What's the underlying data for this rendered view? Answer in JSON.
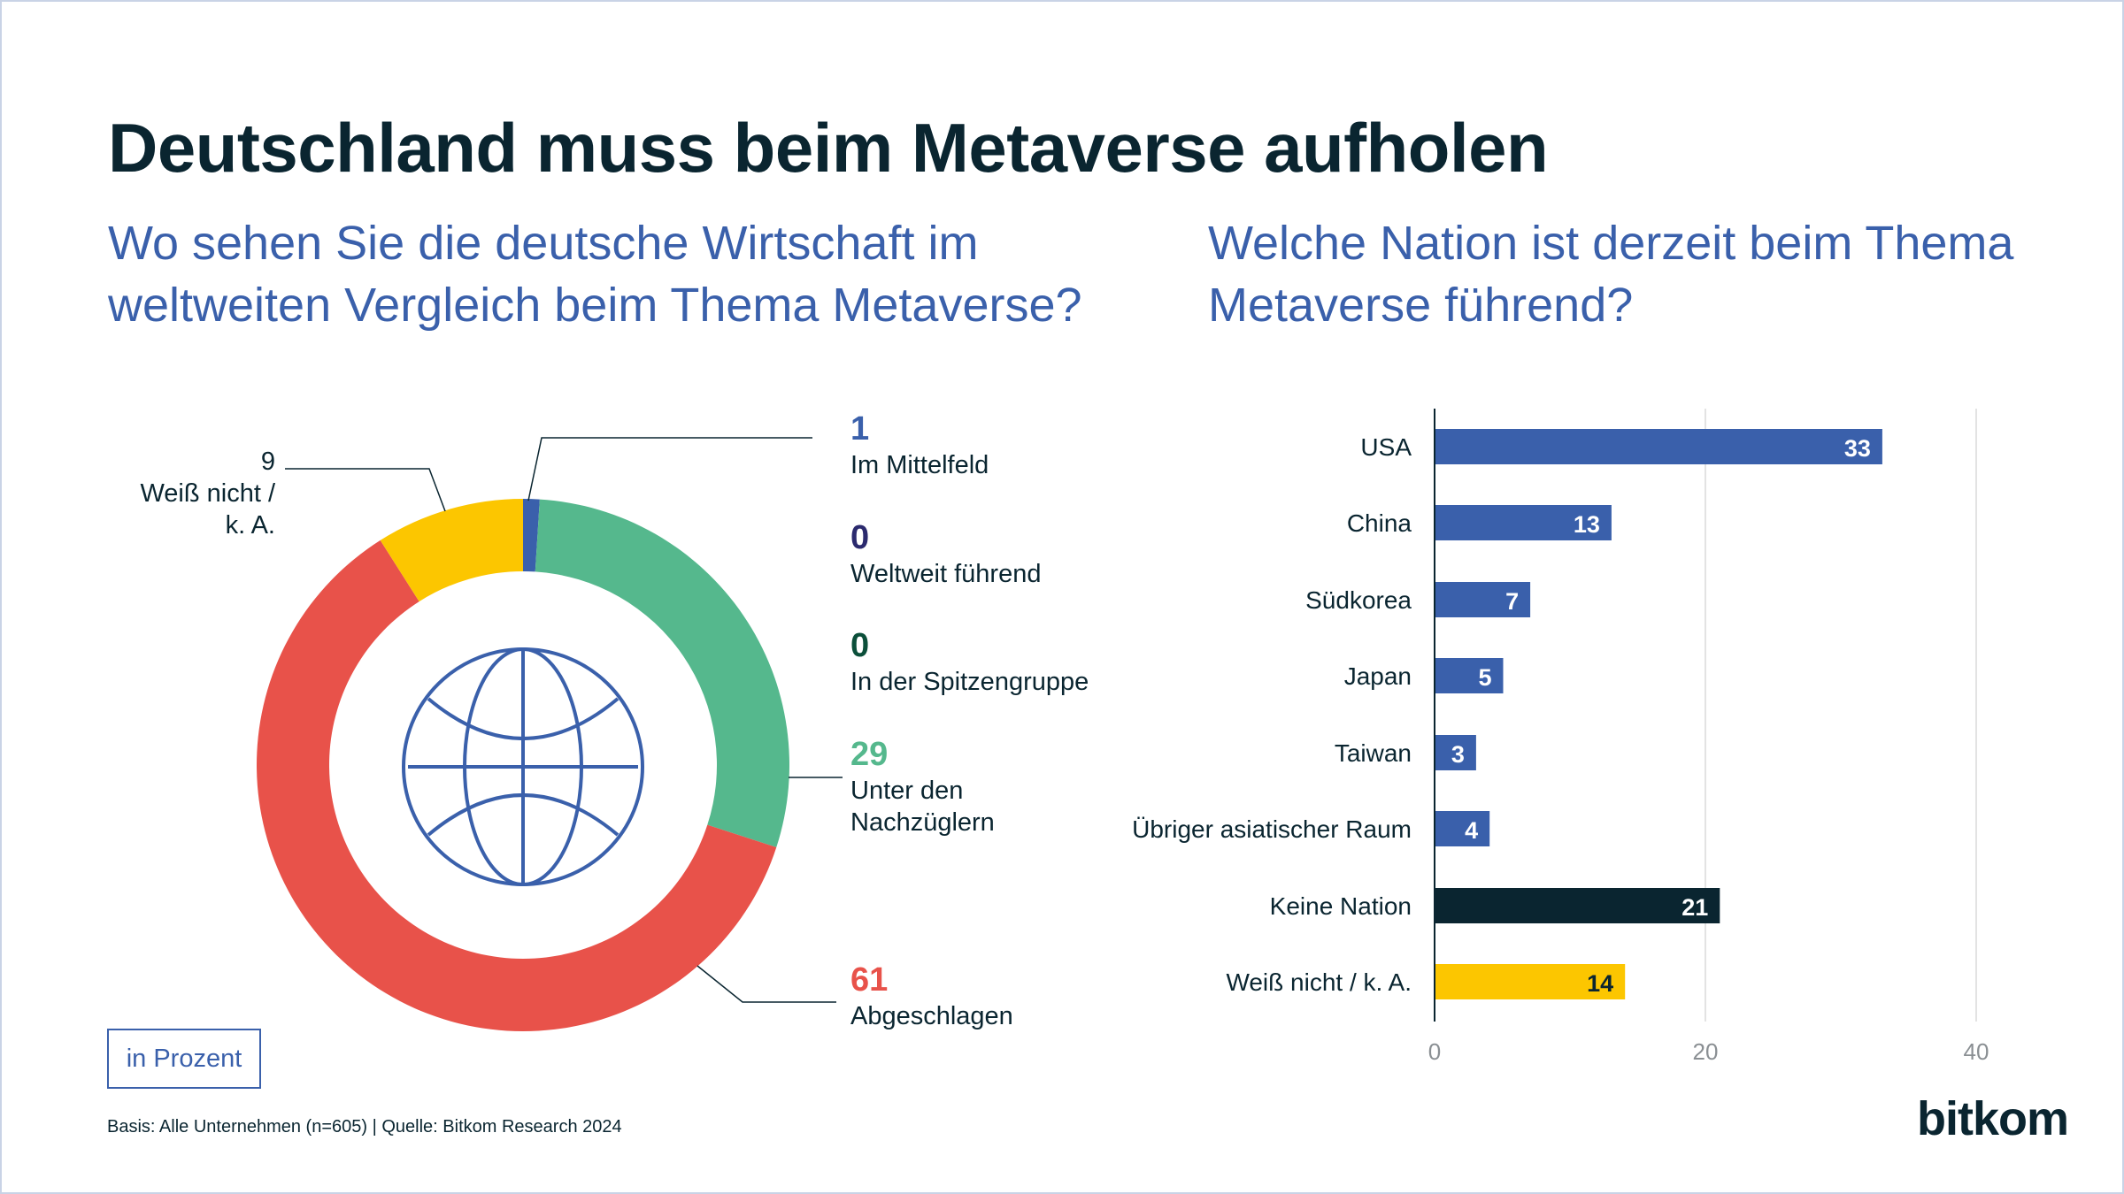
{
  "title": "Deutschland muss beim Metaverse aufholen",
  "subtitle_left": "Wo sehen Sie die deutsche Wirtschaft im weltweiten Vergleich beim Thema Metaverse?",
  "subtitle_right": "Welche Nation ist derzeit beim Thema Metaverse führend?",
  "unit_box": "in Prozent",
  "footer": "Basis: Alle Unternehmen (n=605) | Quelle: Bitkom Research 2024",
  "logo": "bitkom",
  "center_icon": "globe-icon",
  "chart_data": [
    {
      "type": "pie",
      "variant": "donut",
      "unit": "in Prozent",
      "slices": [
        {
          "label": "Im Mittelfeld",
          "value": 1,
          "color": "#3a60ab"
        },
        {
          "label": "Weltweit führend",
          "value": 0,
          "color": "#2b2a6e"
        },
        {
          "label": "In der Spitzengruppe",
          "value": 0,
          "color": "#0b4f3a"
        },
        {
          "label": "Unter den Nachzüglern",
          "value": 29,
          "color": "#55b88d"
        },
        {
          "label": "Abgeschlagen",
          "value": 61,
          "color": "#e8524a"
        },
        {
          "label": "Weiß nicht / k. A.",
          "value": 9,
          "color": "#fcc600"
        }
      ]
    },
    {
      "type": "bar",
      "orientation": "horizontal",
      "categories": [
        "USA",
        "China",
        "Südkorea",
        "Japan",
        "Taiwan",
        "Übriger asiatischer Raum",
        "Keine Nation",
        "Weiß nicht / k. A."
      ],
      "values": [
        33,
        13,
        7,
        5,
        3,
        4,
        21,
        14
      ],
      "colors": [
        "#3a60ab",
        "#3a60ab",
        "#3a60ab",
        "#3a60ab",
        "#3a60ab",
        "#3a60ab",
        "#0a2530",
        "#fcc600"
      ],
      "label_colors": [
        "#ffffff",
        "#ffffff",
        "#ffffff",
        "#ffffff",
        "#ffffff",
        "#ffffff",
        "#ffffff",
        "#0a2530"
      ],
      "xlim": [
        0,
        40
      ],
      "xticks": [
        "0",
        "20",
        "40"
      ],
      "grid": true
    }
  ]
}
